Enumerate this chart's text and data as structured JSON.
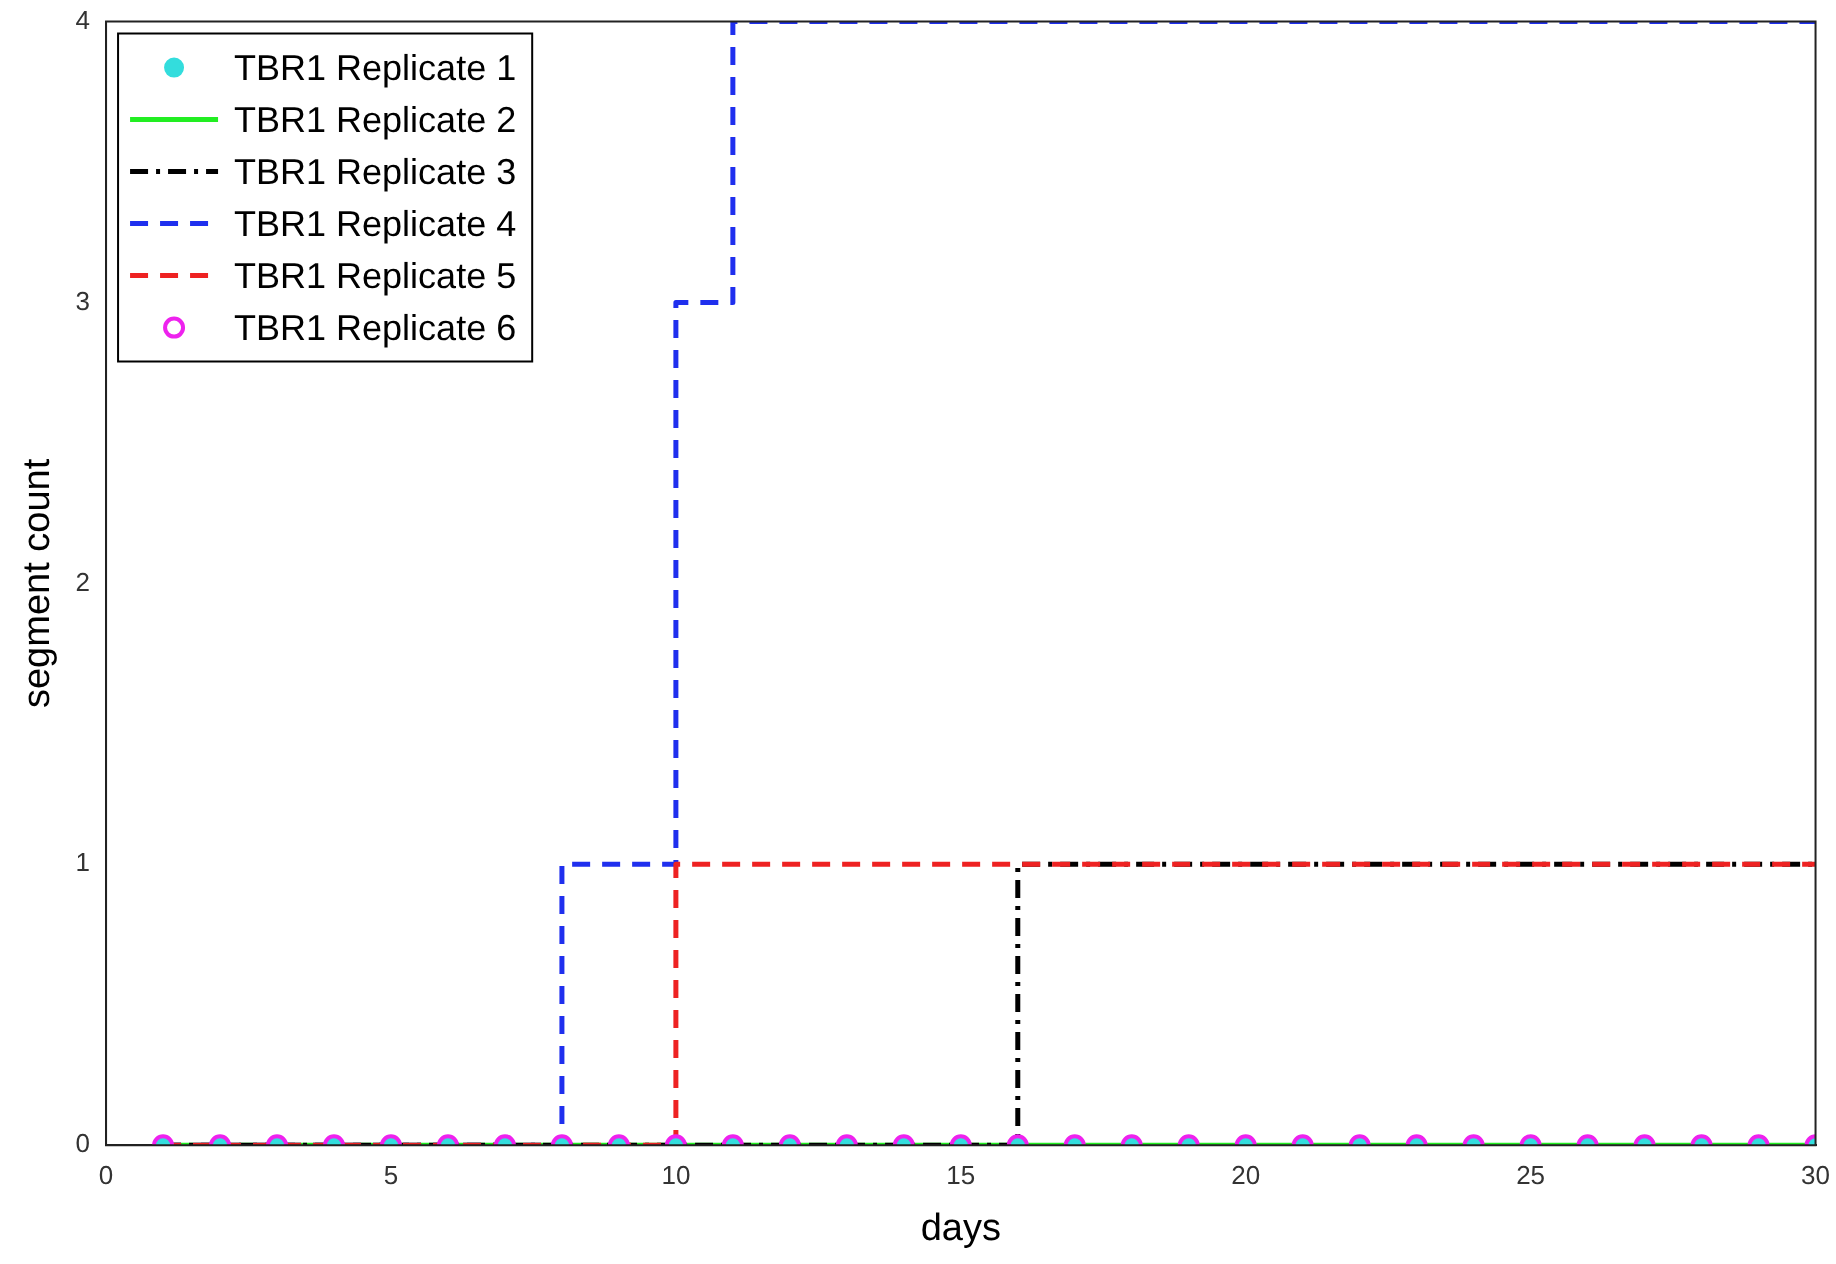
{
  "chart_data": {
    "type": "step",
    "xlabel": "days",
    "ylabel": "segment count",
    "x": [
      1,
      2,
      3,
      4,
      5,
      6,
      7,
      8,
      9,
      10,
      11,
      12,
      13,
      14,
      15,
      16,
      17,
      18,
      19,
      20,
      21,
      22,
      23,
      24,
      25,
      26,
      27,
      28,
      29,
      30
    ],
    "xlim": [
      0,
      30
    ],
    "xticks": [
      0,
      5,
      10,
      15,
      20,
      25,
      30
    ],
    "ylim": [
      0,
      4
    ],
    "yticks": [
      0,
      1,
      2,
      3,
      4
    ],
    "grid": false,
    "legend": "top left",
    "series": [
      {
        "name": "TBR1 Replicate 1",
        "type": "scatter",
        "marker": "circle",
        "color": "#33dddd",
        "values": [
          0,
          0,
          0,
          0,
          0,
          0,
          0,
          0,
          0,
          0,
          0,
          0,
          0,
          0,
          0,
          0,
          0,
          0,
          0,
          0,
          0,
          0,
          0,
          0,
          0,
          0,
          0,
          0,
          0,
          0
        ]
      },
      {
        "name": "TBR1 Replicate 2",
        "line_style": "solid",
        "color": "#22ee22",
        "values": [
          0,
          0,
          0,
          0,
          0,
          0,
          0,
          0,
          0,
          0,
          0,
          0,
          0,
          0,
          0,
          0,
          0,
          0,
          0,
          0,
          0,
          0,
          0,
          0,
          0,
          0,
          0,
          0,
          0,
          0
        ]
      },
      {
        "name": "TBR1 Replicate 3",
        "line_style": "dashdot",
        "color": "#000000",
        "values": [
          0,
          0,
          0,
          0,
          0,
          0,
          0,
          0,
          0,
          0,
          0,
          0,
          0,
          0,
          0,
          1,
          1,
          1,
          1,
          1,
          1,
          1,
          1,
          1,
          1,
          1,
          1,
          1,
          1,
          1
        ]
      },
      {
        "name": "TBR1 Replicate 4",
        "line_style": "dashed",
        "color": "#1f2fee",
        "values": [
          0,
          0,
          0,
          0,
          0,
          0,
          0,
          1,
          1,
          3,
          4,
          4,
          4,
          4,
          4,
          4,
          4,
          4,
          4,
          4,
          4,
          4,
          4,
          4,
          4,
          4,
          4,
          4,
          4,
          4
        ]
      },
      {
        "name": "TBR1 Replicate 5",
        "line_style": "dashed",
        "color": "#ee2222",
        "values": [
          0,
          0,
          0,
          0,
          0,
          0,
          0,
          0,
          0,
          1,
          1,
          1,
          1,
          1,
          1,
          1,
          1,
          1,
          1,
          1,
          1,
          1,
          1,
          1,
          1,
          1,
          1,
          1,
          1,
          1
        ]
      },
      {
        "name": "TBR1 Replicate 6",
        "type": "scatter",
        "marker": "open_circle",
        "color": "#ee22ee",
        "values": [
          0,
          0,
          0,
          0,
          0,
          0,
          0,
          0,
          0,
          0,
          0,
          0,
          0,
          0,
          0,
          0,
          0,
          0,
          0,
          0,
          0,
          0,
          0,
          0,
          0,
          0,
          0,
          0,
          0,
          0
        ]
      }
    ]
  }
}
